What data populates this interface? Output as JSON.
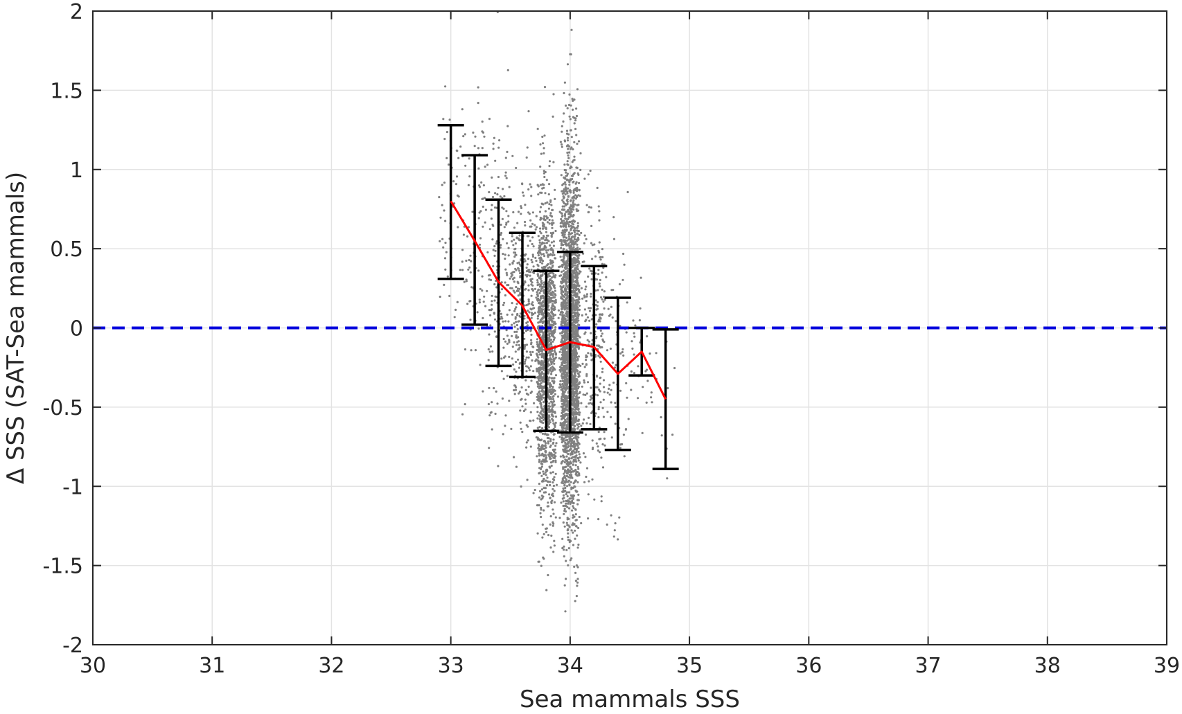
{
  "chart_data": {
    "type": "scatter",
    "title": "",
    "xlabel": "Sea mammals SSS",
    "ylabel": "Δ SSS (SAT-Sea mammals)",
    "xlim": [
      30,
      39
    ],
    "ylim": [
      -2,
      2
    ],
    "x_ticks": [
      "30",
      "31",
      "32",
      "33",
      "34",
      "35",
      "36",
      "37",
      "38",
      "39"
    ],
    "y_ticks": [
      "-2",
      "-1.5",
      "-1",
      "-0.5",
      "0",
      "0.5",
      "1",
      "1.5",
      "2"
    ],
    "grid": true,
    "legend": "none",
    "colors": {
      "scatter": "#808080",
      "mean_line": "#ff0000",
      "error_bars": "#000000",
      "zero_line": "#0000dd",
      "grid": "#e3e3e3",
      "axes": "#262626"
    },
    "scatter_distribution": [
      {
        "x_center": 33.0,
        "x_spread": 0.12,
        "y_mean": 0.8,
        "y_sd": 0.4,
        "count": 60
      },
      {
        "x_center": 33.2,
        "x_spread": 0.1,
        "y_mean": 0.55,
        "y_sd": 0.45,
        "count": 90
      },
      {
        "x_center": 33.4,
        "x_spread": 0.1,
        "y_mean": 0.28,
        "y_sd": 0.45,
        "count": 180
      },
      {
        "x_center": 33.6,
        "x_spread": 0.1,
        "y_mean": 0.14,
        "y_sd": 0.4,
        "count": 350
      },
      {
        "x_center": 33.8,
        "x_spread": 0.08,
        "y_mean": -0.15,
        "y_sd": 0.5,
        "count": 1400
      },
      {
        "x_center": 34.0,
        "x_spread": 0.08,
        "y_mean": -0.09,
        "y_sd": 0.55,
        "count": 2600
      },
      {
        "x_center": 34.2,
        "x_spread": 0.1,
        "y_mean": -0.12,
        "y_sd": 0.45,
        "count": 260
      },
      {
        "x_center": 34.4,
        "x_spread": 0.1,
        "y_mean": -0.3,
        "y_sd": 0.45,
        "count": 70
      },
      {
        "x_center": 34.6,
        "x_spread": 0.1,
        "y_mean": -0.15,
        "y_sd": 0.25,
        "count": 30
      },
      {
        "x_center": 34.8,
        "x_spread": 0.1,
        "y_mean": -0.45,
        "y_sd": 0.4,
        "count": 10
      }
    ],
    "series": [
      {
        "type": "line",
        "x": [
          33.0,
          33.2,
          33.4,
          33.6,
          33.8,
          34.0,
          34.2,
          34.4,
          34.6,
          34.8
        ],
        "y": [
          0.8,
          0.55,
          0.29,
          0.14,
          -0.14,
          -0.09,
          -0.12,
          -0.29,
          -0.15,
          -0.45
        ]
      },
      {
        "type": "errorbar",
        "x": [
          33.0,
          33.2,
          33.4,
          33.6,
          33.8,
          34.0,
          34.2,
          34.4,
          34.6,
          34.8
        ],
        "lower": [
          0.31,
          0.02,
          -0.24,
          -0.31,
          -0.65,
          -0.66,
          -0.64,
          -0.77,
          -0.3,
          -0.89
        ],
        "upper": [
          1.28,
          1.09,
          0.81,
          0.6,
          0.36,
          0.48,
          0.39,
          0.19,
          0.0,
          -0.01
        ]
      },
      {
        "type": "hline",
        "y": 0,
        "style": "dashed"
      }
    ]
  }
}
